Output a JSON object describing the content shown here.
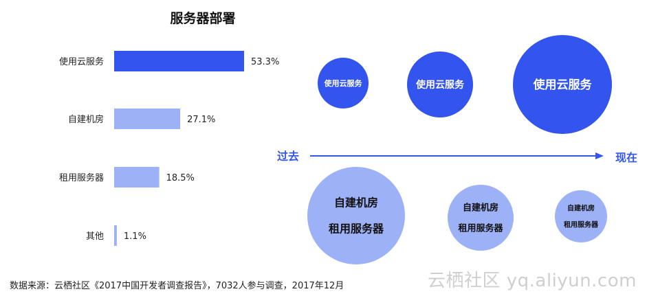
{
  "chart_data": [
    {
      "type": "bar",
      "orientation": "horizontal",
      "title": "服务器部署",
      "categories": [
        "使用云服务",
        "自建机房",
        "租用服务器",
        "其他"
      ],
      "values": [
        53.3,
        27.1,
        18.5,
        1.1
      ],
      "value_labels": [
        "53.3%",
        "27.1%",
        "18.5%",
        "1.1%"
      ],
      "unit": "%",
      "colors": [
        "#3355ee",
        "#9db1f7",
        "#9db1f7",
        "#9db1f7"
      ]
    },
    {
      "type": "bubble",
      "axis_from": "过去",
      "axis_to": "现在",
      "axis_color": "#3355ee",
      "top_row": {
        "label": "使用云服务",
        "color": "#3355ee",
        "text_color": "#ffffff",
        "trend": "increasing"
      },
      "bottom_row": {
        "labels": [
          "自建机房",
          "租用服务器"
        ],
        "color": "#9db1f7",
        "text_color": "#111111",
        "trend": "decreasing"
      }
    }
  ],
  "footer": {
    "source": "数据来源：云栖社区《2017中国开发者调查报告》，7032人参与调查，2017年12月",
    "watermark": "云栖社区 yq.aliyun.com"
  }
}
